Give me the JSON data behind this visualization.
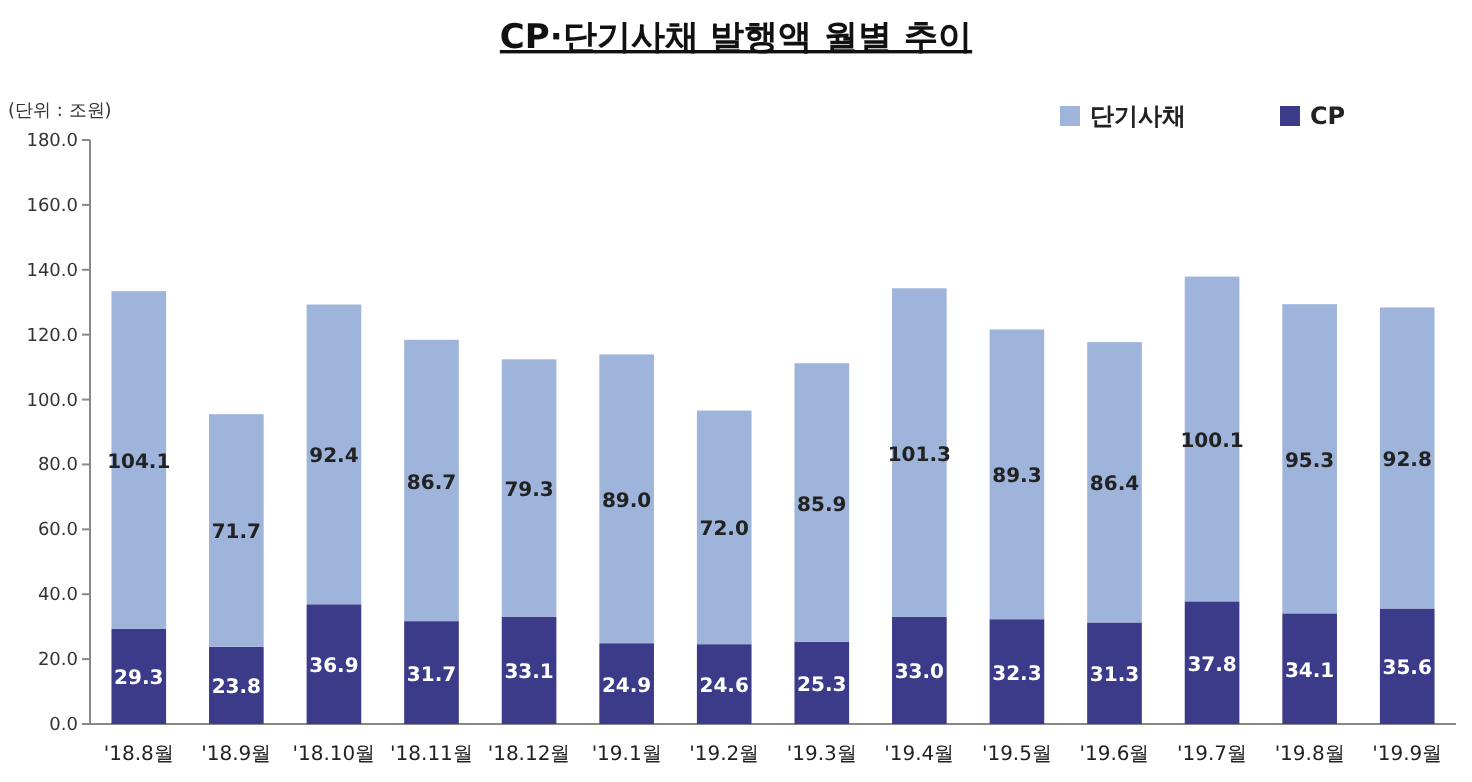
{
  "chart_data": {
    "type": "bar",
    "stacked": true,
    "title": "CP·단기사채 발행액 월별 추이",
    "annotations": [
      "(단위 : 조원)"
    ],
    "categories": [
      "'18.8월",
      "'18.9월",
      "'18.10월",
      "'18.11월",
      "'18.12월",
      "'19.1월",
      "'19.2월",
      "'19.3월",
      "'19.4월",
      "'19.5월",
      "'19.6월",
      "'19.7월",
      "'19.8월",
      "'19.9월"
    ],
    "series": [
      {
        "name": "CP",
        "color": "#3b3b8a",
        "values": [
          29.3,
          23.8,
          36.9,
          31.7,
          33.1,
          24.9,
          24.6,
          25.3,
          33.0,
          32.3,
          31.3,
          37.8,
          34.1,
          35.6
        ],
        "value_labels": [
          "29.3",
          "23.8",
          "36.9",
          "31.7",
          "33.1",
          "24.9",
          "24.6",
          "25.3",
          "33.0",
          "32.3",
          "31.3",
          "37.8",
          "34.1",
          "35.6"
        ]
      },
      {
        "name": "단기사채",
        "color": "#9fb4da",
        "values": [
          104.1,
          71.7,
          92.4,
          86.7,
          79.3,
          89.0,
          72.0,
          85.9,
          101.3,
          89.3,
          86.4,
          100.1,
          95.3,
          92.8
        ],
        "value_labels": [
          "104.1",
          "71.7",
          "92.4",
          "86.7",
          "79.3",
          "89.0",
          "72.0",
          "85.9",
          "101.3",
          "89.3",
          "86.4",
          "100.1",
          "95.3",
          "92.8"
        ]
      }
    ],
    "ylim": [
      0,
      180
    ],
    "yticks": [
      {
        "value": 0,
        "label": "0.0"
      },
      {
        "value": 20,
        "label": "20.0"
      },
      {
        "value": 40,
        "label": "40.0"
      },
      {
        "value": 60,
        "label": "60.0"
      },
      {
        "value": 80,
        "label": "80.0"
      },
      {
        "value": 100,
        "label": "100.0"
      },
      {
        "value": 120,
        "label": "120.0"
      },
      {
        "value": 140,
        "label": "140.0"
      },
      {
        "value": 160,
        "label": "160.0"
      },
      {
        "value": 180,
        "label": "180.0"
      }
    ],
    "legend": "top right"
  }
}
